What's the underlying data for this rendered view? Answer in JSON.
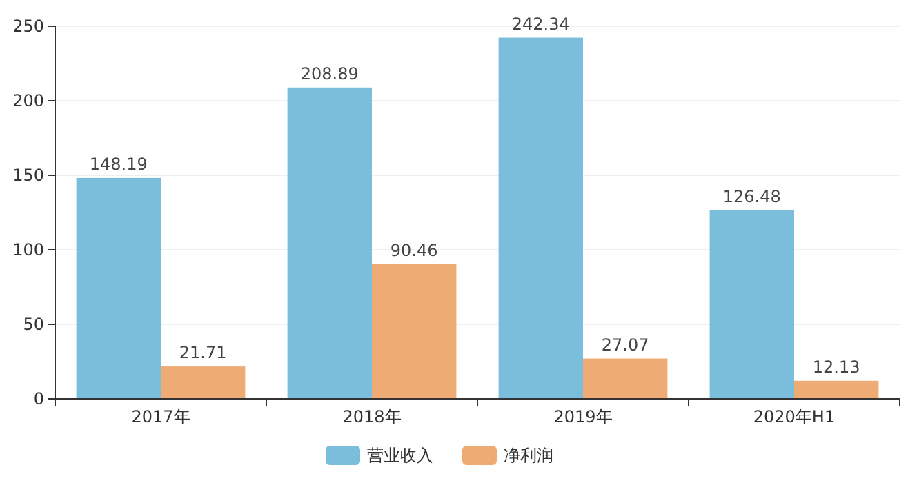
{
  "chart_data": {
    "type": "bar",
    "categories": [
      "2017年",
      "2018年",
      "2019年",
      "2020年H1"
    ],
    "series": [
      {
        "name": "营业收入",
        "color": "#7bbedb",
        "values": [
          148.19,
          208.89,
          242.34,
          126.48
        ]
      },
      {
        "name": "净利润",
        "color": "#eeac74",
        "values": [
          21.71,
          90.46,
          27.07,
          12.13
        ]
      }
    ],
    "ylim": [
      0,
      250
    ],
    "yticks": [
      0,
      50,
      100,
      150,
      200,
      250
    ],
    "grid": "y",
    "legend": "bottom",
    "data_labels": true
  }
}
